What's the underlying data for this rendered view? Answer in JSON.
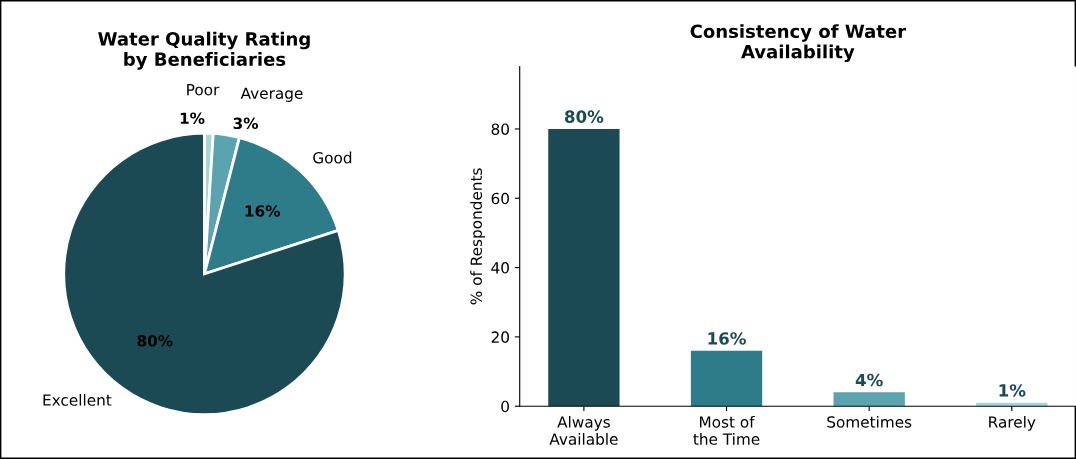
{
  "chart_data": [
    {
      "type": "pie",
      "title": "Water Quality Rating\nby Beneficiaries",
      "categories": [
        "Poor",
        "Average",
        "Good",
        "Excellent"
      ],
      "values": [
        1,
        3,
        16,
        80
      ],
      "colors": [
        "#a8d5dd",
        "#5ba3ae",
        "#2e7b8a",
        "#1c4a54"
      ],
      "value_labels": [
        "1%",
        "3%",
        "16%",
        "80%"
      ]
    },
    {
      "type": "bar",
      "title": "Consistency of Water\nAvailability",
      "ylabel": "% of Respondents",
      "categories": [
        "Always\nAvailable",
        "Most of\nthe Time",
        "Sometimes",
        "Rarely"
      ],
      "values": [
        80,
        16,
        4,
        1
      ],
      "colors": [
        "#1c4a54",
        "#2e7b8a",
        "#5ba3ae",
        "#a8d5dd"
      ],
      "value_labels": [
        "80%",
        "16%",
        "4%",
        "1%"
      ],
      "ylim": [
        0,
        98
      ],
      "yticks": [
        0,
        20,
        40,
        60,
        80
      ],
      "grid": false
    }
  ]
}
